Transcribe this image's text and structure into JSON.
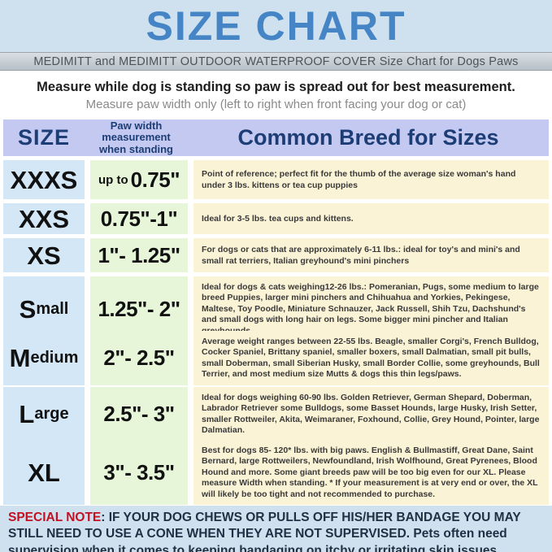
{
  "title": "SIZE CHART",
  "brand_line": "MEDIMITT and MEDIMITT OUTDOOR WATERPROOF COVER Size Chart for Dogs Paws",
  "instructions": {
    "line1": "Measure while dog is standing so paw is spread out for best measurement.",
    "line2": "Measure paw width only (left to right when front facing your dog or cat)"
  },
  "table": {
    "headers": {
      "size": "SIZE",
      "paw_width": "Paw width measurement when standing",
      "breeds": "Common Breed for Sizes"
    },
    "rows": [
      {
        "size_big": "XXXS",
        "size_rest": "",
        "width_prefix": "up to ",
        "width_value": "0.75\"",
        "description": "Point of reference; perfect fit for the thumb of the average size woman's hand under 3 lbs. kittens or tea cup puppies"
      },
      {
        "size_big": "XXS",
        "size_rest": "",
        "width_prefix": "",
        "width_value": "0.75\"-1\"",
        "description": "Ideal for 3-5 lbs. tea cups and kittens."
      },
      {
        "size_big": "XS",
        "size_rest": "",
        "width_prefix": "",
        "width_value": "1\"- 1.25\"",
        "description": "For dogs or cats that are approximately 6-11 lbs.: ideal for toy's and mini's and small rat terriers, Italian greyhound's mini pinchers"
      },
      {
        "size_big": "S",
        "size_rest": "mall",
        "width_prefix": "",
        "width_value": "1.25\"- 2\"",
        "description": "Ideal for dogs & cats weighing12-26 lbs.: Pomeranian, Pugs, some medium to large breed Puppies, larger mini pinchers and Chihuahua and Yorkies, Pekingese, Maltese, Toy Poodle, Miniature Schnauzer, Jack Russell, Shih Tzu, Dachshund's and small dogs with long hair on legs. Some bigger mini pincher and Italian greyhounds."
      },
      {
        "size_big": "M",
        "size_rest": "edium",
        "width_prefix": "",
        "width_value": "2\"- 2.5\"",
        "description": "Average weight ranges between 22-55 lbs. Beagle, smaller Corgi's, French Bulldog, Cocker Spaniel, Brittany spaniel, smaller boxers, small Dalmatian, small pit bulls, small Doberman, small Siberian Husky, small Border Collie, some greyhounds, Bull Terrier, and most medium size Mutts & dogs this thin legs/paws."
      },
      {
        "size_big": "L",
        "size_rest": "arge",
        "width_prefix": "",
        "width_value": "2.5\"- 3\"",
        "description": "Ideal for dogs weighing 60-90 lbs. Golden Retriever, German Shepard, Doberman, Labrador Retriever some Bulldogs, some Basset Hounds, large Husky, Irish Setter, smaller Rottweiler, Akita, Weimaraner, Foxhound, Collie, Grey Hound, Pointer, large Dalmatian."
      },
      {
        "size_big": "XL",
        "size_rest": "",
        "width_prefix": "",
        "width_value": "3\"- 3.5\"",
        "description": "Best for dogs 85- 120* lbs. with big paws. English & Bullmastiff, Great Dane, Saint Bernard, large Rottweilers, Newfoundland, Irish Wolfhound, Great Pyrenees, Blood Hound and more. Some giant breeds paw will be too big even for our XL. Please measure Width when standing. * If your measurement is at very end or over, the XL will likely be too tight and not recommended to purchase."
      }
    ]
  },
  "special_note": {
    "label": "SPECIAL NOTE",
    "text": ":  IF YOUR DOG CHEWS OR PULLS OFF HIS/HER BANDAGE YOU MAY STILL NEED TO USE A CONE WHEN THEY ARE NOT SUPERVISED. Pets often need supervision when it comes to keeping bandaging on itchy or irritating skin issues."
  },
  "colors": {
    "title_blue": "#4585c5",
    "header_lavender": "#c4c9f1",
    "header_text_navy": "#1c3d75",
    "size_col_blue": "#d3e7f7",
    "width_col_green": "#e7f6d9",
    "desc_col_cream": "#faf3d6",
    "page_blue": "#cfe1ef",
    "note_red": "#c41022"
  }
}
